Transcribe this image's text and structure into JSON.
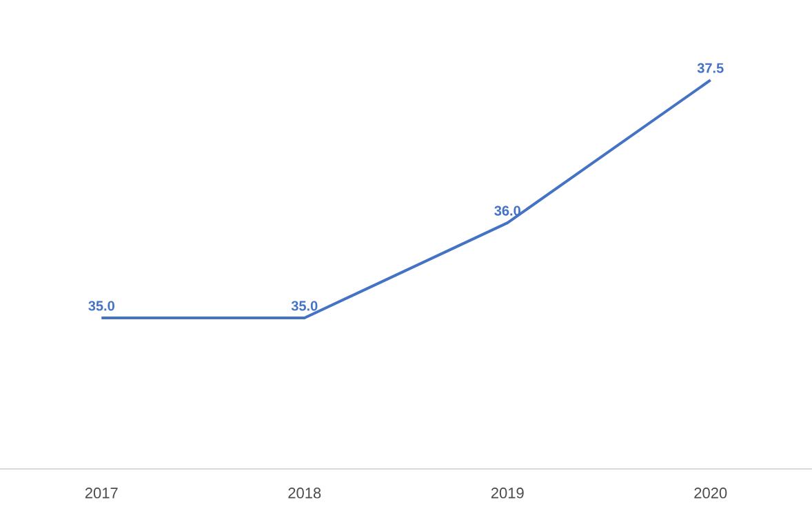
{
  "chart_data": {
    "type": "line",
    "categories": [
      "2017",
      "2018",
      "2019",
      "2020"
    ],
    "series": [
      {
        "color": "#4472c4",
        "values": [
          35.0,
          35.0,
          36.0,
          37.5
        ],
        "value_labels": [
          "35.0",
          "35.0",
          "36.0",
          "37.5"
        ]
      }
    ],
    "grid": false,
    "marker": "none",
    "line_style": "solid"
  }
}
